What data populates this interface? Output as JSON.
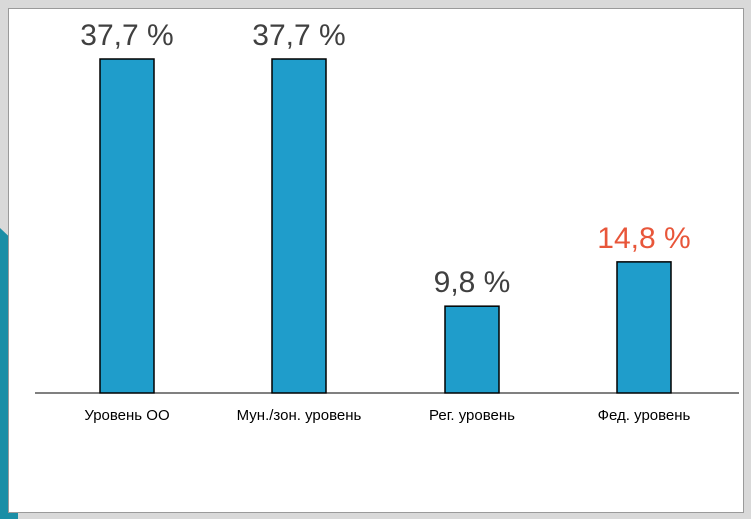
{
  "colors": {
    "bar": "#1f9dcb",
    "bar_stroke": "#000000",
    "label_default": "#404040",
    "label_highlight": "#e8563a",
    "accent": "#1a8ea6",
    "background": "#d9d9d9"
  },
  "chart_data": {
    "type": "bar",
    "categories": [
      "Уровень ОО",
      "Мун./зон. уровень",
      "Рег. уровень",
      "Фед. уровень"
    ],
    "values": [
      37.7,
      37.7,
      9.8,
      14.8
    ],
    "value_labels": [
      "37,7 %",
      "37,7 %",
      "9,8 %",
      "14,8 %"
    ],
    "highlight_index": 3,
    "title": "",
    "xlabel": "",
    "ylabel": "",
    "ylim": [
      0,
      37.7
    ],
    "grid": false,
    "legend": "none"
  }
}
